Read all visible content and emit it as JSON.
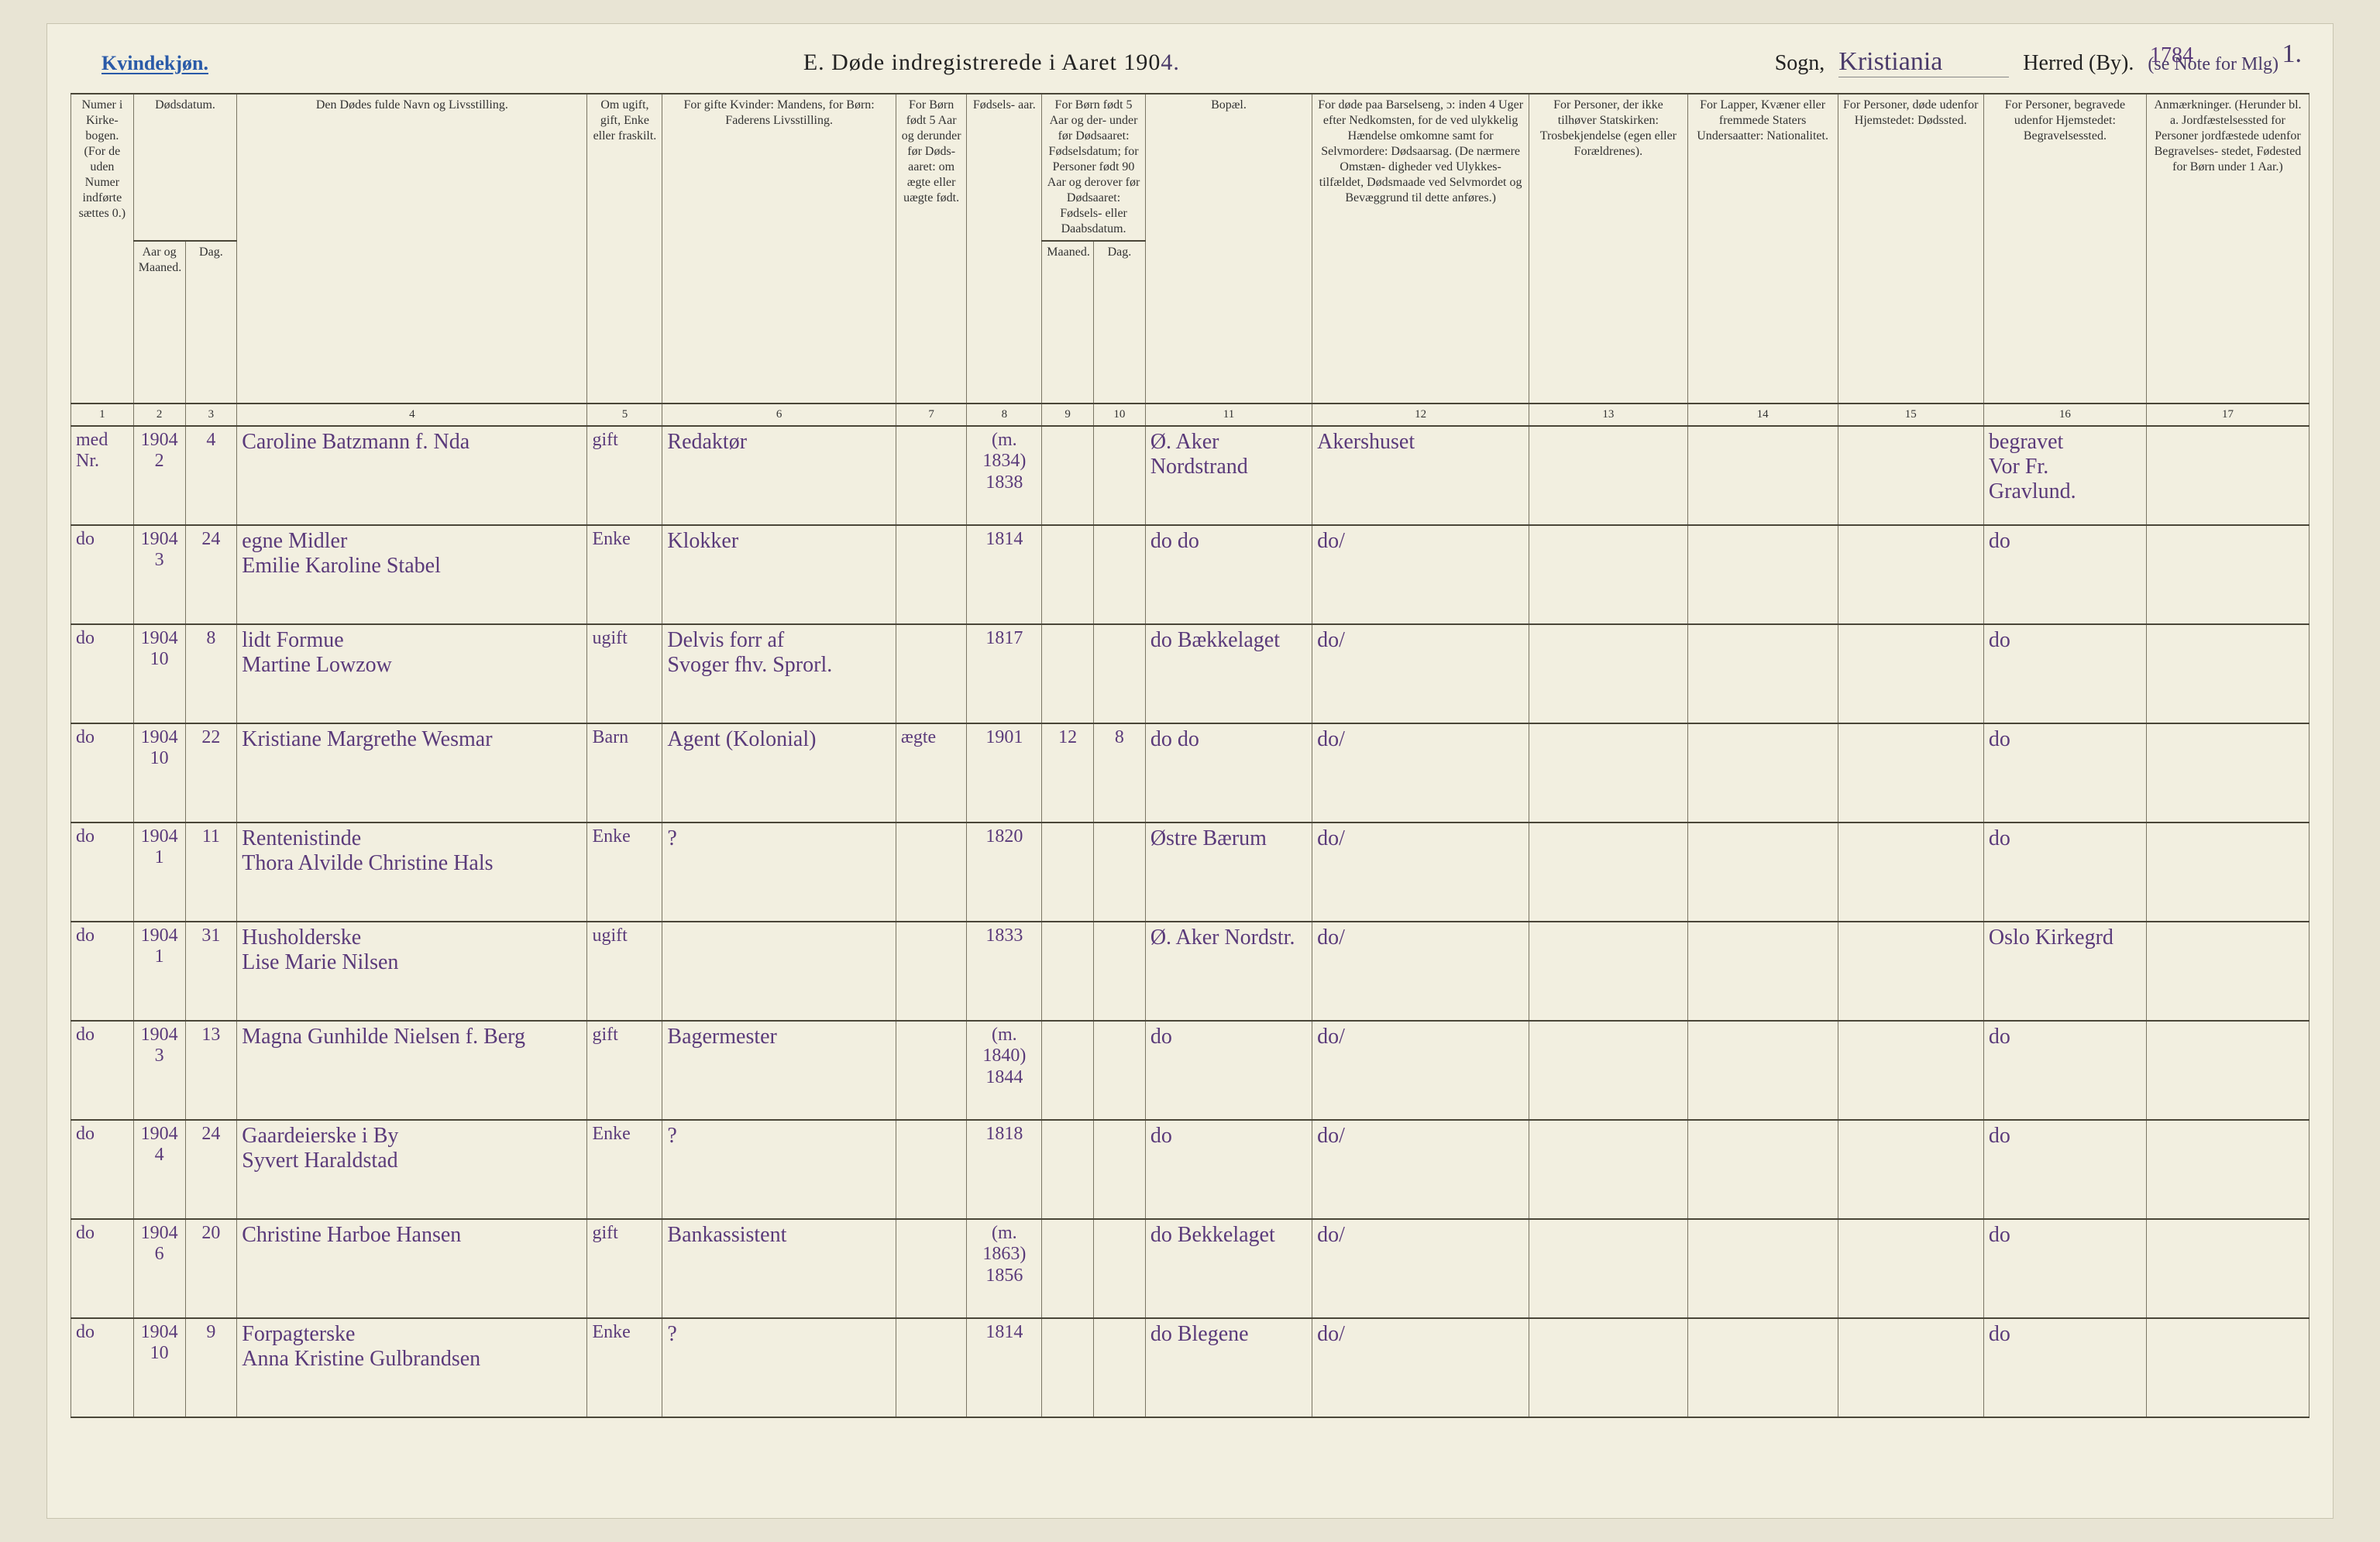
{
  "page_corner": "1.",
  "page_handnum": "1784",
  "gender_label": "Kvindekjøn.",
  "title_prefix": "E.  Døde indregistrerede i Aaret 190",
  "title_year_suffix": "4.",
  "sogn_label": "Sogn,",
  "sogn_value": "Kristiania",
  "herred_label": "Herred (By).",
  "herred_note": "(se Note for Mlg)",
  "columns": {
    "c1": "Numer i Kirke-\nbogen.\n(For de uden Numer indførte sættes 0.)",
    "c2_group": "Dødsdatum.",
    "c2": "Aar og Maaned.",
    "c3": "Dag.",
    "c4": "Den Dødes fulde Navn og Livsstilling.",
    "c5": "Om ugift, gift, Enke eller fraskilt.",
    "c6": "For gifte Kvinder:\nMandens,\nfor Børn:\nFaderens Livsstilling.",
    "c7": "For Børn født 5 Aar og derunder før Døds-\naaret: om ægte eller uægte født.",
    "c8": "Fødsels-\naar.",
    "c9_group": "For Børn født 5 Aar og der-\nunder før Dødsaaret:\nFødselsdatum; for Personer født 90 Aar og derover før Dødsaaret:\nFødsels- eller Daabsdatum.",
    "c9": "Maaned.",
    "c10": "Dag.",
    "c11": "Bopæl.",
    "c12": "For døde paa Barselseng, ɔ: inden 4 Uger efter Nedkomsten, for de ved ulykkelig Hændelse omkomne samt for Selvmordere:\nDødsaarsag.\n(De nærmere Omstæn-\ndigheder ved Ulykkes-\ntilfældet, Dødsmaade ved Selvmordet og Bevæggrund til dette anføres.)",
    "c13": "For Personer, der ikke tilhøver Statskirken:\nTrosbekjendelse (egen eller Forældrenes).",
    "c14": "For Lapper, Kvæner eller fremmede Staters Undersaatter:\nNationalitet.",
    "c15": "For Personer, døde udenfor Hjemstedet:\nDødssted.",
    "c16": "For Personer, begravede udenfor Hjemstedet:\nBegravelsessted.",
    "c17": "Anmærkninger.\n(Herunder bl. a. Jordfæstelsessted for Personer jordfæstede udenfor Begravelses-\nstedet, Fødested for Børn under 1 Aar.)"
  },
  "colnums": [
    "1",
    "2",
    "3",
    "4",
    "5",
    "6",
    "7",
    "8",
    "9",
    "10",
    "11",
    "12",
    "13",
    "14",
    "15",
    "16",
    "17"
  ],
  "rows": [
    {
      "c1": "med Nr.",
      "c2": "1904\n2",
      "c3": "4",
      "c4": "Caroline Batzmann f. Nda",
      "c5": "gift",
      "c6": "Redaktør",
      "c7": "",
      "c8": "(m. 1834)\n1838",
      "c9": "",
      "c10": "",
      "c11": "Ø. Aker\nNordstrand",
      "c12": "Akershuset",
      "c16": "begravet\nVor Fr. Gravlund."
    },
    {
      "c1": "do",
      "c2": "1904\n3",
      "c3": "24",
      "c4": "egne Midler\nEmilie Karoline Stabel",
      "c5": "Enke",
      "c6": "Klokker",
      "c8": "1814",
      "c11": "do   do",
      "c12": "do/",
      "c16": "do"
    },
    {
      "c1": "do",
      "c2": "1904\n10",
      "c3": "8",
      "c4": "lidt Formue\nMartine Lowzow",
      "c5": "ugift",
      "c6": "Delvis forr af\nSvoger fhv. Sprorl.",
      "c8": "1817",
      "c11": "do  Bækkelaget",
      "c12": "do/",
      "c16": "do"
    },
    {
      "c1": "do",
      "c2": "1904\n10",
      "c3": "22",
      "c4": "Kristiane Margrethe Wesmar",
      "c5": "Barn",
      "c6": "Agent (Kolonial)",
      "c7": "ægte",
      "c8": "1901",
      "c9": "12",
      "c10": "8",
      "c11": "do   do",
      "c12": "do/",
      "c16": "do"
    },
    {
      "c1": "do",
      "c2": "1904\n1",
      "c3": "11",
      "c4": "Rentenistinde\nThora Alvilde Christine Hals",
      "c5": "Enke",
      "c6": "?",
      "c8": "1820",
      "c11": "Østre Bærum",
      "c12": "do/",
      "c16": "do"
    },
    {
      "c1": "do",
      "c2": "1904\n1",
      "c3": "31",
      "c4": "Husholderske\nLise Marie Nilsen",
      "c5": "ugift",
      "c8": "1833",
      "c11": "Ø. Aker Nordstr.",
      "c12": "do/",
      "c16": "Oslo Kirkegrd"
    },
    {
      "c1": "do",
      "c2": "1904\n3",
      "c3": "13",
      "c4": "Magna Gunhilde Nielsen f. Berg",
      "c5": "gift",
      "c6": "Bagermester",
      "c8": "(m. 1840)\n1844",
      "c11": "do",
      "c12": "do/",
      "c16": "do"
    },
    {
      "c1": "do",
      "c2": "1904\n4",
      "c3": "24",
      "c4": "Gaardeierske i By\nSyvert Haraldstad",
      "c5": "Enke",
      "c6": "?",
      "c8": "1818",
      "c11": "do",
      "c12": "do/",
      "c16": "do"
    },
    {
      "c1": "do",
      "c2": "1904\n6",
      "c3": "20",
      "c4": "Christine Harboe Hansen",
      "c5": "gift",
      "c6": "Bankassistent",
      "c8": "(m. 1863)\n1856",
      "c11": "do  Bekkelaget",
      "c12": "do/",
      "c16": "do"
    },
    {
      "c1": "do",
      "c2": "1904\n10",
      "c3": "9",
      "c4": "Forpagterske\nAnna Kristine Gulbrandsen",
      "c5": "Enke",
      "c6": "?",
      "c8": "1814",
      "c11": "do  Blegene",
      "c12": "do/",
      "c16": "do"
    }
  ]
}
